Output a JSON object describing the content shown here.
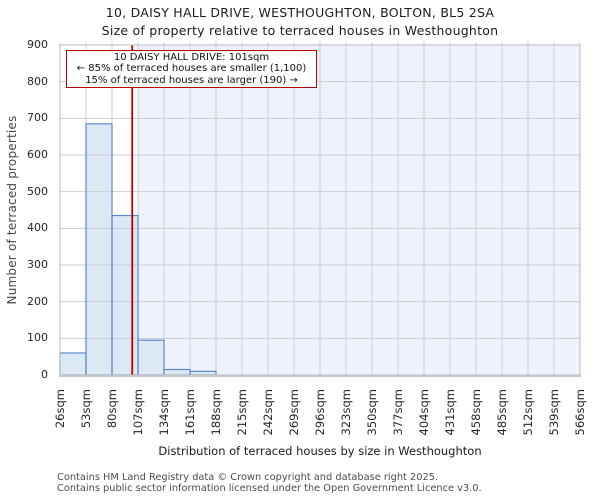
{
  "title": {
    "line1": "10, DAISY HALL DRIVE, WESTHOUGHTON, BOLTON, BL5 2SA",
    "line2": "Size of property relative to terraced houses in Westhoughton"
  },
  "annotation": {
    "line1": "10 DAISY HALL DRIVE: 101sqm",
    "line2": "← 85% of terraced houses are smaller (1,100)",
    "line3": "15% of terraced houses are larger (190) →"
  },
  "footer": {
    "line1": "Contains HM Land Registry data © Crown copyright and database right 2025.",
    "line2": "Contains public sector information licensed under the Open Government Licence v3.0."
  },
  "chart_data": {
    "type": "bar",
    "title": "10, DAISY HALL DRIVE, WESTHOUGHTON, BOLTON, BL5 2SA",
    "subtitle": "Size of property relative to terraced houses in Westhoughton",
    "xlabel": "Distribution of terraced houses by size in Westhoughton",
    "ylabel": "Number of terraced properties",
    "bin_start_sqm": 26,
    "bin_width_sqm": 27,
    "categories": [
      "26sqm",
      "53sqm",
      "80sqm",
      "107sqm",
      "134sqm",
      "161sqm",
      "188sqm",
      "215sqm",
      "242sqm",
      "269sqm",
      "296sqm",
      "323sqm",
      "350sqm",
      "377sqm",
      "404sqm",
      "431sqm",
      "458sqm",
      "485sqm",
      "512sqm",
      "539sqm",
      "566sqm"
    ],
    "values": [
      60,
      685,
      435,
      95,
      15,
      10,
      0,
      0,
      0,
      0,
      0,
      0,
      0,
      0,
      0,
      0,
      0,
      0,
      0,
      0
    ],
    "ylim": [
      0,
      900
    ],
    "y_ticks": [
      0,
      100,
      200,
      300,
      400,
      500,
      600,
      700,
      800,
      900
    ],
    "grid": true,
    "marker": {
      "value_sqm": 101,
      "label": "10 DAISY HALL DRIVE: 101sqm",
      "smaller_pct": "85%",
      "smaller_count": "1,100",
      "larger_pct": "15%",
      "larger_count": "190"
    },
    "shade_from_sqm": 107,
    "colors": {
      "bar_fill": "#dde8f5",
      "bar_border": "#5b8ac6",
      "marker_line": "#c00000",
      "annotation_border": "#b30000",
      "shade": "#eef2fa",
      "grid": "#c9cdd5",
      "spine": "#b6bac2",
      "axis_line": "#c6c6c6"
    }
  }
}
